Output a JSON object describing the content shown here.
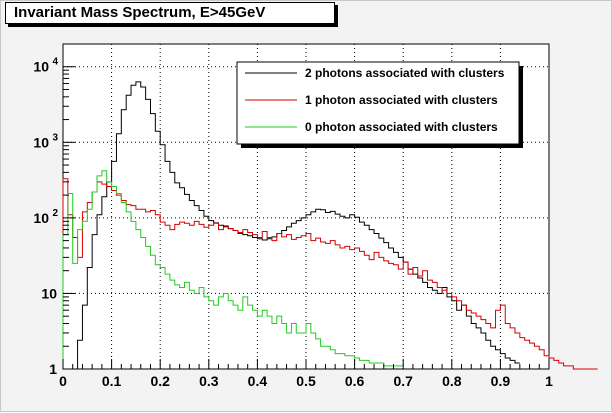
{
  "chart_data": {
    "type": "line",
    "title": "Invariant Mass Spectrum, E>45GeV",
    "xlabel": "",
    "ylabel": "",
    "xlim": [
      0,
      1
    ],
    "ylim": [
      1,
      20000
    ],
    "yscale": "log",
    "grid": true,
    "legend_position": "top-right",
    "x_ticks": [
      0,
      0.1,
      0.2,
      0.3,
      0.4,
      0.5,
      0.6,
      0.7,
      0.8,
      0.9,
      1
    ],
    "x_tick_labels": [
      "0",
      "0.1",
      "0.2",
      "0.3",
      "0.4",
      "0.5",
      "0.6",
      "0.7",
      "0.8",
      "0.9",
      "1"
    ],
    "y_ticks": [
      1,
      10,
      100,
      1000,
      10000
    ],
    "y_tick_labels": [
      {
        "base": "1",
        "exp": ""
      },
      {
        "base": "10",
        "exp": ""
      },
      {
        "base": "10",
        "exp": "2"
      },
      {
        "base": "10",
        "exp": "3"
      },
      {
        "base": "10",
        "exp": "4"
      }
    ],
    "bin_width": 0.01,
    "series": [
      {
        "name": "2 photons associated with clusters",
        "color": "#000000",
        "x_start": 0.03,
        "values": [
          2.4,
          7,
          22,
          60,
          110,
          190,
          300,
          560,
          1300,
          2700,
          4200,
          5700,
          6300,
          5400,
          3700,
          2400,
          1400,
          930,
          560,
          400,
          290,
          250,
          205,
          170,
          145,
          125,
          105,
          92,
          86,
          80,
          78,
          72,
          68,
          62,
          60,
          58,
          55,
          53,
          51,
          53,
          56,
          62,
          68,
          76,
          85,
          92,
          100,
          110,
          120,
          130,
          128,
          118,
          122,
          112,
          105,
          100,
          110,
          102,
          88,
          80,
          70,
          62,
          54,
          47,
          40,
          35,
          30,
          26,
          21,
          18,
          16,
          14,
          12,
          11,
          10,
          12,
          9,
          8,
          6,
          7,
          5,
          4,
          3.5,
          3,
          2.4,
          2,
          1.8,
          1.6,
          1.4,
          1.3,
          1.2
        ]
      },
      {
        "name": "1 photon associated with clusters",
        "color": "#d40000",
        "x_start": 0.0,
        "values": [
          330,
          110,
          55,
          30,
          120,
          160,
          220,
          300,
          280,
          260,
          230,
          200,
          170,
          150,
          145,
          130,
          130,
          120,
          125,
          110,
          88,
          80,
          70,
          82,
          88,
          85,
          80,
          90,
          82,
          75,
          80,
          85,
          70,
          76,
          72,
          68,
          64,
          70,
          64,
          60,
          55,
          66,
          55,
          50,
          62,
          56,
          60,
          52,
          55,
          58,
          62,
          50,
          54,
          48,
          46,
          50,
          44,
          40,
          42,
          38,
          40,
          36,
          32,
          28,
          35,
          30,
          27,
          25,
          24,
          21,
          26,
          18,
          22,
          17,
          20,
          15,
          14,
          12,
          11,
          10,
          9,
          8,
          7,
          6,
          5.5,
          5,
          4.5,
          4,
          3.5,
          6,
          7,
          4,
          3.5,
          3,
          2.6,
          2.4,
          2.2,
          2,
          1.8,
          1.5,
          1.4,
          1.3,
          1.2,
          1.1,
          1.1,
          1.0,
          1.0,
          1.0,
          1.0,
          1.0
        ]
      },
      {
        "name": "0 photon associated with clusters",
        "color": "#22cc22",
        "x_start": 0.0,
        "values": [
          60,
          210,
          25,
          70,
          90,
          130,
          220,
          360,
          420,
          300,
          260,
          210,
          160,
          120,
          90,
          70,
          55,
          42,
          32,
          24,
          22,
          18,
          15,
          13,
          12,
          14,
          11,
          10,
          12,
          9,
          8,
          7,
          9,
          10,
          8,
          7,
          6,
          9,
          7,
          6,
          5,
          6,
          5,
          4,
          5,
          4,
          3,
          4,
          3,
          3,
          4,
          3,
          2.5,
          2,
          2,
          1.8,
          1.6,
          1.6,
          1.5,
          1.5,
          1.4,
          1.3,
          1.3,
          1.2,
          1.2,
          1.2,
          1.1,
          1.1,
          1.1,
          1.1
        ]
      }
    ]
  }
}
